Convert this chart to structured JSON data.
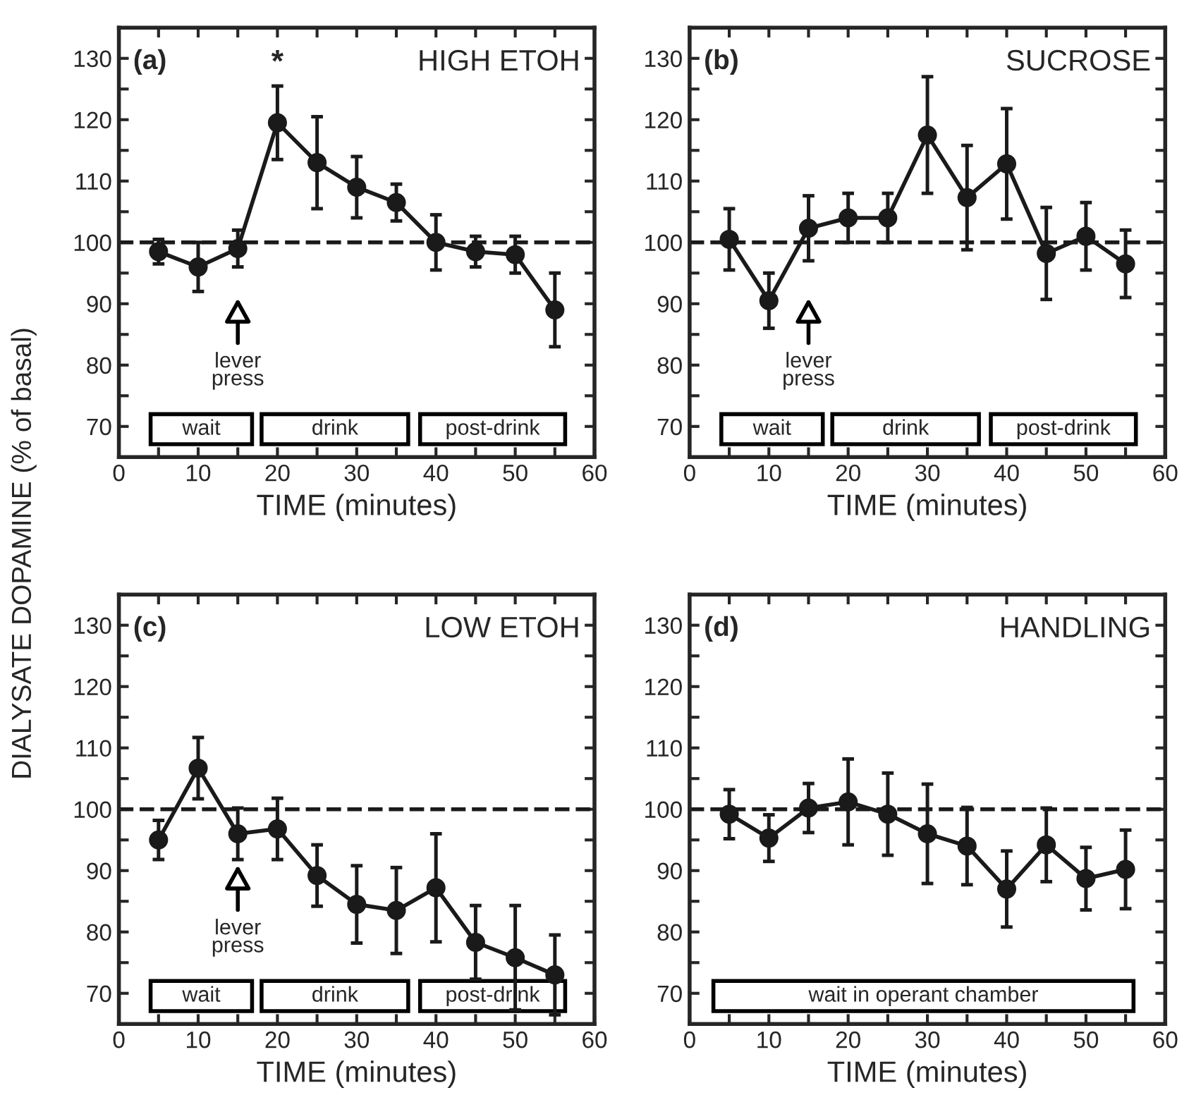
{
  "chart_data": [
    {
      "type": "line",
      "title": "HIGH ETOH",
      "xlabel": "TIME (minutes)",
      "ylabel": "DIALYSATE DOPAMINE (% of basal)",
      "x": [
        5,
        10,
        15,
        20,
        25,
        30,
        35,
        40,
        45,
        50,
        55
      ],
      "series": [
        {
          "color": "#1a1a1a",
          "values": [
            98.5,
            96,
            99,
            119.5,
            113,
            109,
            106.5,
            100,
            98.5,
            98,
            89
          ],
          "errors": [
            2,
            4,
            3,
            6,
            7.5,
            5,
            3,
            4.5,
            2.5,
            3,
            6
          ]
        }
      ],
      "xlim": [
        0,
        60
      ],
      "ylim": [
        65,
        135
      ],
      "xticks": [
        0,
        {
          "value": 5,
          "label": null
        },
        10,
        {
          "value": 15,
          "label": null
        },
        20,
        {
          "value": 25,
          "label": null
        },
        30,
        {
          "value": 35,
          "label": null
        },
        40,
        {
          "value": 45,
          "label": null
        },
        50,
        {
          "value": 55,
          "label": null
        },
        60
      ],
      "yticks": [
        70,
        {
          "value": 75,
          "label": null
        },
        80,
        {
          "value": 85,
          "label": null
        },
        90,
        {
          "value": 95,
          "label": null
        },
        100,
        {
          "value": 105,
          "label": null
        },
        110,
        {
          "value": 115,
          "label": null
        },
        120,
        {
          "value": 125,
          "label": null
        },
        130
      ],
      "ref_lines": [
        {
          "axis": "y",
          "value": 100,
          "line_style": "dashed",
          "color": "#1a1a1a"
        }
      ],
      "bands": [
        {
          "axis": "x",
          "from": 4,
          "to": 16.8,
          "label": "wait"
        },
        {
          "axis": "x",
          "from": 18,
          "to": 36.5,
          "label": "drink"
        },
        {
          "axis": "x",
          "from": 38,
          "to": 56.3,
          "label": "post-drink"
        }
      ],
      "annotations": [
        "(a)",
        {
          "text": "*",
          "x": 20,
          "y": 119.5
        },
        "lever press"
      ],
      "marker": "circle",
      "line_style": "solid",
      "grid": false,
      "legend": false
    },
    {
      "type": "line",
      "title": "SUCROSE",
      "xlabel": "TIME (minutes)",
      "x": [
        5,
        10,
        15,
        20,
        25,
        30,
        35,
        40,
        45,
        50,
        55
      ],
      "series": [
        {
          "color": "#1a1a1a",
          "values": [
            100.5,
            90.5,
            102.3,
            104,
            104,
            117.5,
            107.3,
            112.8,
            98.2,
            101,
            96.5
          ],
          "errors": [
            5,
            4.5,
            5.3,
            4,
            4,
            9.5,
            8.5,
            9,
            7.5,
            5.5,
            5.5
          ]
        }
      ],
      "xlim": [
        0,
        60
      ],
      "ylim": [
        65,
        135
      ],
      "xticks": [
        0,
        {
          "value": 5,
          "label": null
        },
        10,
        {
          "value": 15,
          "label": null
        },
        20,
        {
          "value": 25,
          "label": null
        },
        30,
        {
          "value": 35,
          "label": null
        },
        40,
        {
          "value": 45,
          "label": null
        },
        50,
        {
          "value": 55,
          "label": null
        },
        60
      ],
      "yticks": [
        70,
        {
          "value": 75,
          "label": null
        },
        80,
        {
          "value": 85,
          "label": null
        },
        90,
        {
          "value": 95,
          "label": null
        },
        100,
        {
          "value": 105,
          "label": null
        },
        110,
        {
          "value": 115,
          "label": null
        },
        120,
        {
          "value": 125,
          "label": null
        },
        130
      ],
      "ref_lines": [
        {
          "axis": "y",
          "value": 100,
          "line_style": "dashed",
          "color": "#1a1a1a"
        }
      ],
      "bands": [
        {
          "axis": "x",
          "from": 4,
          "to": 16.8,
          "label": "wait"
        },
        {
          "axis": "x",
          "from": 18,
          "to": 36.5,
          "label": "drink"
        },
        {
          "axis": "x",
          "from": 38,
          "to": 56.3,
          "label": "post-drink"
        }
      ],
      "annotations": [
        "(b)",
        "lever press"
      ],
      "marker": "circle",
      "line_style": "solid",
      "grid": false,
      "legend": false
    },
    {
      "type": "line",
      "title": "LOW ETOH",
      "xlabel": "TIME (minutes)",
      "x": [
        5,
        10,
        15,
        20,
        25,
        30,
        35,
        40,
        45,
        50,
        55
      ],
      "series": [
        {
          "color": "#1a1a1a",
          "values": [
            95,
            106.7,
            96,
            96.8,
            89.2,
            84.5,
            83.5,
            87.2,
            78.3,
            75.8,
            73
          ],
          "errors": [
            3.2,
            5,
            4.2,
            5,
            5,
            6.3,
            7,
            8.8,
            6,
            8.5,
            6.5
          ]
        }
      ],
      "xlim": [
        0,
        60
      ],
      "ylim": [
        65,
        135
      ],
      "xticks": [
        0,
        {
          "value": 5,
          "label": null
        },
        10,
        {
          "value": 15,
          "label": null
        },
        20,
        {
          "value": 25,
          "label": null
        },
        30,
        {
          "value": 35,
          "label": null
        },
        40,
        {
          "value": 45,
          "label": null
        },
        50,
        {
          "value": 55,
          "label": null
        },
        60
      ],
      "yticks": [
        70,
        {
          "value": 75,
          "label": null
        },
        80,
        {
          "value": 85,
          "label": null
        },
        90,
        {
          "value": 95,
          "label": null
        },
        100,
        {
          "value": 105,
          "label": null
        },
        110,
        {
          "value": 115,
          "label": null
        },
        120,
        {
          "value": 125,
          "label": null
        },
        130
      ],
      "ref_lines": [
        {
          "axis": "y",
          "value": 100,
          "line_style": "dashed",
          "color": "#1a1a1a"
        }
      ],
      "bands": [
        {
          "axis": "x",
          "from": 4,
          "to": 16.8,
          "label": "wait"
        },
        {
          "axis": "x",
          "from": 18,
          "to": 36.5,
          "label": "drink"
        },
        {
          "axis": "x",
          "from": 38,
          "to": 56.3,
          "label": "post-drink"
        }
      ],
      "annotations": [
        "(c)",
        "lever press"
      ],
      "marker": "circle",
      "line_style": "solid",
      "grid": false,
      "legend": false
    },
    {
      "type": "line",
      "title": "HANDLING",
      "xlabel": "TIME (minutes)",
      "x": [
        5,
        10,
        15,
        20,
        25,
        30,
        35,
        40,
        45,
        50,
        55
      ],
      "series": [
        {
          "color": "#1a1a1a",
          "values": [
            99.2,
            95.3,
            100.2,
            101.2,
            99.2,
            96,
            94,
            87,
            94.2,
            88.7,
            90.2
          ],
          "errors": [
            4,
            3.8,
            4,
            7,
            6.7,
            8.1,
            6.3,
            6.2,
            6,
            5.1,
            6.4
          ]
        }
      ],
      "xlim": [
        0,
        60
      ],
      "ylim": [
        65,
        135
      ],
      "xticks": [
        0,
        {
          "value": 5,
          "label": null
        },
        10,
        {
          "value": 15,
          "label": null
        },
        20,
        {
          "value": 25,
          "label": null
        },
        30,
        {
          "value": 35,
          "label": null
        },
        40,
        {
          "value": 45,
          "label": null
        },
        50,
        {
          "value": 55,
          "label": null
        },
        60
      ],
      "yticks": [
        70,
        {
          "value": 75,
          "label": null
        },
        80,
        {
          "value": 85,
          "label": null
        },
        90,
        {
          "value": 95,
          "label": null
        },
        100,
        {
          "value": 105,
          "label": null
        },
        110,
        {
          "value": 115,
          "label": null
        },
        120,
        {
          "value": 125,
          "label": null
        },
        130
      ],
      "ref_lines": [
        {
          "axis": "y",
          "value": 100,
          "line_style": "dashed",
          "color": "#1a1a1a"
        }
      ],
      "bands": [
        {
          "axis": "x",
          "from": 3,
          "to": 56,
          "label": "wait in operant chamber"
        }
      ],
      "annotations": [
        "(d)"
      ],
      "marker": "circle",
      "line_style": "solid",
      "grid": false,
      "legend": false
    }
  ]
}
